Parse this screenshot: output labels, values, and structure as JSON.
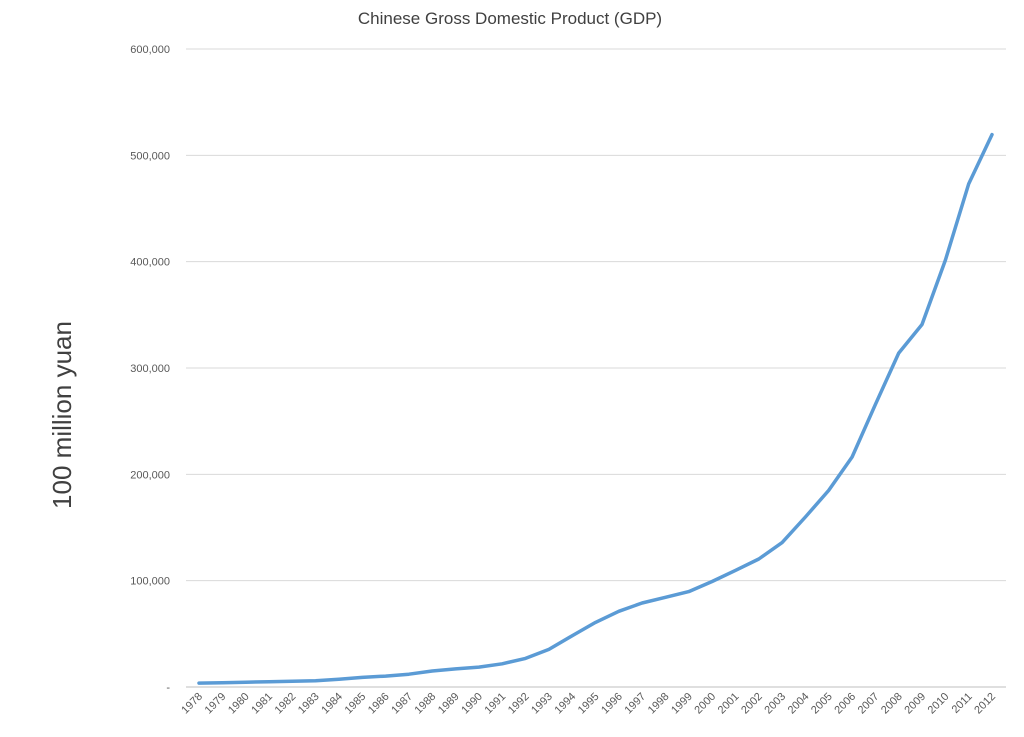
{
  "chart_data": {
    "type": "line",
    "title": "Chinese Gross Domestic Product (GDP)",
    "xlabel": "",
    "ylabel": "100 million yuan",
    "ylim": [
      0,
      600000
    ],
    "yticks": [
      0,
      100000,
      200000,
      300000,
      400000,
      500000,
      600000
    ],
    "ytick_labels": [
      "-",
      "100,000",
      "200,000",
      "300,000",
      "400,000",
      "500,000",
      "600,000"
    ],
    "grid": true,
    "legend": "none",
    "colors": {
      "series": "#5b9bd5",
      "grid": "#d9d9d9"
    },
    "categories": [
      "1978",
      "1979",
      "1980",
      "1981",
      "1982",
      "1983",
      "1984",
      "1985",
      "1986",
      "1987",
      "1988",
      "1989",
      "1990",
      "1991",
      "1992",
      "1993",
      "1994",
      "1995",
      "1996",
      "1997",
      "1998",
      "1999",
      "2000",
      "2001",
      "2002",
      "2003",
      "2004",
      "2005",
      "2006",
      "2007",
      "2008",
      "2009",
      "2010",
      "2011",
      "2012"
    ],
    "series": [
      {
        "values": [
          3645,
          4063,
          4546,
          4892,
          5323,
          5963,
          7208,
          9016,
          10275,
          12059,
          15043,
          16992,
          18668,
          21781,
          26923,
          35334,
          48198,
          60794,
          71177,
          78973,
          84402,
          89677,
          99215,
          109655,
          120333,
          135823,
          159878,
          184937,
          216314,
          265810,
          314045,
          340903,
          401513,
          473104,
          519470
        ]
      }
    ]
  }
}
